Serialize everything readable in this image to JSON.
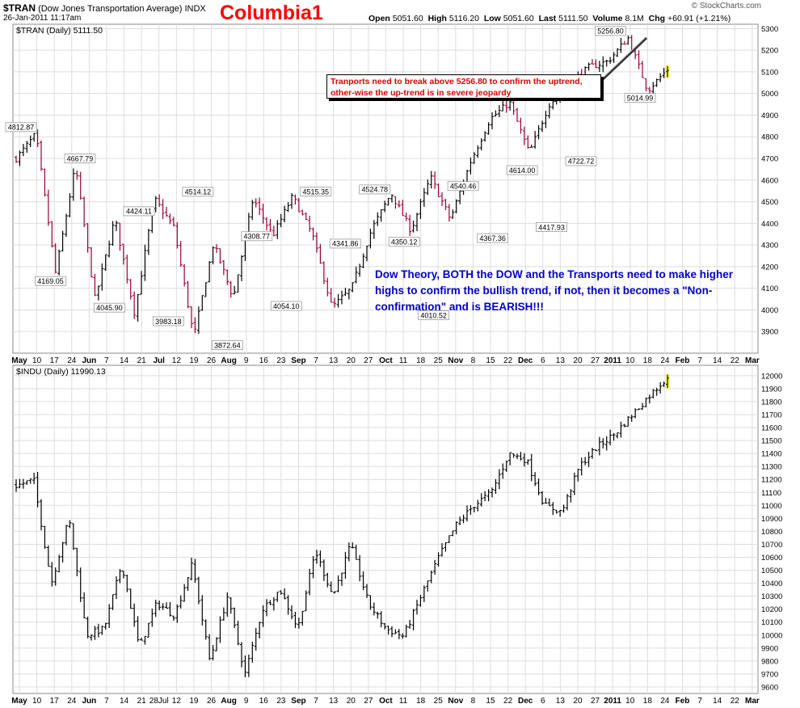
{
  "header": {
    "symbol": "$TRAN",
    "name": "(Dow Jones Transportation Average)",
    "exchange": "INDX",
    "datetime": "26-Jan-2011 11:17am",
    "brand": "Columbia1",
    "credit": "© StockCharts.com",
    "open_label": "Open",
    "open": "5051.60",
    "high_label": "High",
    "high": "5116.20",
    "low_label": "Low",
    "low": "5051.60",
    "last_label": "Last",
    "last": "5111.50",
    "volume_label": "Volume",
    "volume": "8.1M",
    "chg_label": "Chg",
    "chg": "+60.91 (+1.21%)"
  },
  "annotations": {
    "callout": "Tranports need to break above 5256.80 to confirm the uptrend, other-wise the up-trend is in severe jeopardy",
    "dow_theory": "Dow Theory, BOTH the DOW and the Transports need to make higher highs to confirm the bullish trend, if not, then it becomes a \"Non-confirmation\" and is BEARISH!!!"
  },
  "colors": {
    "up": "#000000",
    "down": "#990033",
    "today": "#ffff66",
    "grid": "#dddddd",
    "callout_text": "#e00000",
    "note_text": "#0000cc",
    "brand": "#ff0000"
  },
  "chart_data": [
    {
      "type": "ohlc",
      "legend": "$TRAN (Daily) 5111.50",
      "ylim": [
        3800,
        5320
      ],
      "y_ticks": [
        3900,
        4000,
        4100,
        4200,
        4300,
        4400,
        4500,
        4600,
        4700,
        4800,
        4900,
        5000,
        5100,
        5200,
        5300
      ],
      "x_ticks": [
        "May",
        "10",
        "17",
        "24",
        "Jun",
        "7",
        "14",
        "21",
        "Jul",
        "12",
        "19",
        "26",
        "Aug",
        "9",
        "16",
        "23",
        "Sep",
        "7",
        "13",
        "20",
        "27",
        "Oct",
        "11",
        "18",
        "25",
        "Nov",
        "8",
        "15",
        "22",
        "Dec",
        "6",
        "13",
        "20",
        "27",
        "2011",
        "10",
        "18",
        "24",
        "Feb",
        "7",
        "14",
        "22",
        "Mar"
      ],
      "anchors": [
        4700,
        4812,
        4169,
        4667,
        4046,
        4424,
        3983,
        4514,
        4380,
        3873,
        4308,
        4054,
        4515,
        4342,
        4525,
        4350,
        4011,
        4100,
        4370,
        4540,
        4367,
        4614,
        4418,
        4680,
        4880,
        4960,
        4723,
        4950,
        5040,
        5120,
        5150,
        5257,
        5015,
        5111
      ],
      "labels": [
        {
          "text": "4812.87",
          "value": 4812.87,
          "kind": "high"
        },
        {
          "text": "4169.05",
          "value": 4169.05,
          "kind": "low"
        },
        {
          "text": "4667.79",
          "value": 4667.79,
          "kind": "high"
        },
        {
          "text": "4045.90",
          "value": 4045.9,
          "kind": "low"
        },
        {
          "text": "4424.11",
          "value": 4424.11,
          "kind": "high"
        },
        {
          "text": "3983.18",
          "value": 3983.18,
          "kind": "low"
        },
        {
          "text": "4514.12",
          "value": 4514.12,
          "kind": "high"
        },
        {
          "text": "3872.64",
          "value": 3872.64,
          "kind": "low"
        },
        {
          "text": "4308.77",
          "value": 4308.77,
          "kind": "high"
        },
        {
          "text": "4054.10",
          "value": 4054.1,
          "kind": "low"
        },
        {
          "text": "4515.35",
          "value": 4515.35,
          "kind": "high"
        },
        {
          "text": "4341.86",
          "value": 4341.86,
          "kind": "low"
        },
        {
          "text": "4524.78",
          "value": 4524.78,
          "kind": "high"
        },
        {
          "text": "4350.12",
          "value": 4350.12,
          "kind": "low"
        },
        {
          "text": "4010.52",
          "value": 4010.52,
          "kind": "low"
        },
        {
          "text": "4540.46",
          "value": 4540.46,
          "kind": "high"
        },
        {
          "text": "4367.36",
          "value": 4367.36,
          "kind": "low"
        },
        {
          "text": "4614.00",
          "value": 4614.0,
          "kind": "high"
        },
        {
          "text": "4417.93",
          "value": 4417.93,
          "kind": "low"
        },
        {
          "text": "4722.72",
          "value": 4722.72,
          "kind": "low"
        },
        {
          "text": "5256.80",
          "value": 5256.8,
          "kind": "high"
        },
        {
          "text": "5014.99",
          "value": 5014.99,
          "kind": "low"
        }
      ]
    },
    {
      "type": "ohlc",
      "legend": "$INDU (Daily) 11990.13",
      "ylim": [
        9550,
        12080
      ],
      "y_ticks": [
        9600,
        9700,
        9800,
        9900,
        10000,
        10100,
        10200,
        10300,
        10400,
        10500,
        10600,
        10700,
        10800,
        10900,
        11000,
        11100,
        11200,
        11300,
        11400,
        11500,
        11600,
        11700,
        11800,
        11900,
        12000
      ],
      "x_ticks": [
        "May",
        "10",
        "17",
        "24",
        "Jun",
        "7",
        "14",
        "21",
        "28Jul",
        "12",
        "19",
        "26",
        "Aug",
        "9",
        "16",
        "23",
        "Sep",
        "7",
        "13",
        "20",
        "27",
        "Oct",
        "11",
        "18",
        "25",
        "Nov",
        "8",
        "15",
        "22",
        "Dec",
        "6",
        "13",
        "20",
        "27",
        "2011",
        "10",
        "18",
        "24",
        "Feb",
        "7",
        "14",
        "22",
        "Mar"
      ],
      "anchors": [
        11150,
        11200,
        10400,
        10900,
        10000,
        10050,
        10550,
        9900,
        10250,
        10150,
        10550,
        9800,
        10300,
        9700,
        10200,
        10350,
        10050,
        10650,
        10300,
        10700,
        10250,
        10050,
        9990,
        10300,
        10600,
        10850,
        11000,
        11100,
        11400,
        11350,
        11000,
        10950,
        11300,
        11450,
        11550,
        11700,
        11850,
        11990
      ]
    }
  ]
}
